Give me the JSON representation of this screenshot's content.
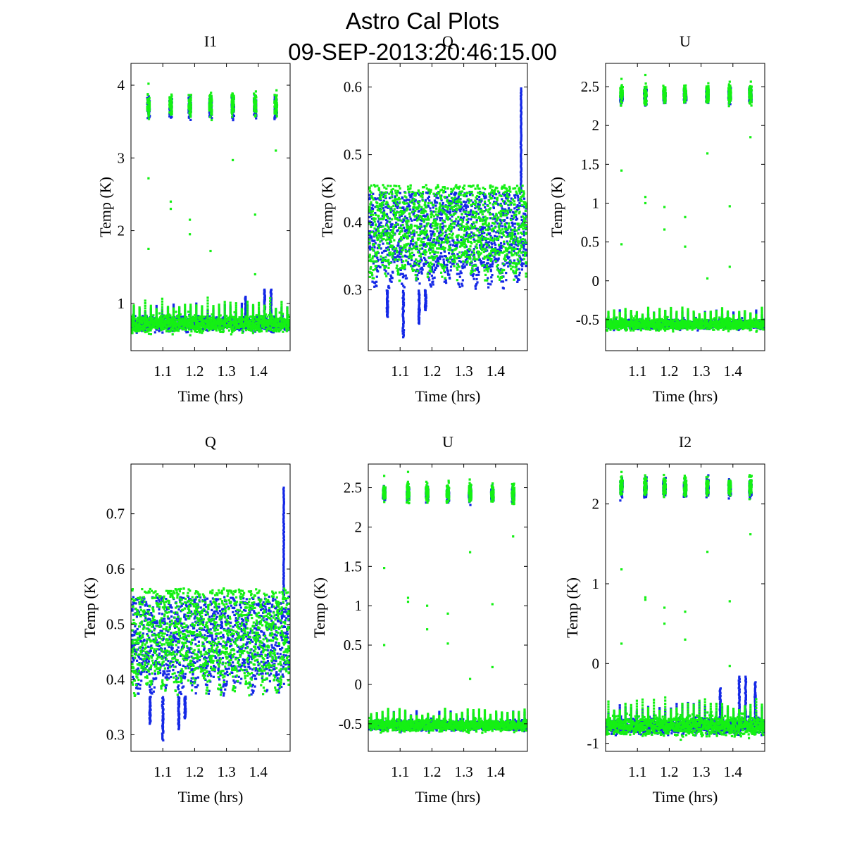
{
  "figure": {
    "title": "Astro Cal Plots",
    "subtitle": "09-SEP-2013:20:46:15.00"
  },
  "colors": {
    "series_a": "#1428e6",
    "series_b": "#14f014",
    "axes": "#000000"
  },
  "chart_data": [
    {
      "type": "scatter",
      "title": "I1",
      "xlabel": "Time (hrs)",
      "ylabel": "Temp (K)",
      "xlim": [
        1.0,
        1.5
      ],
      "ylim": [
        0.35,
        4.3
      ],
      "xticks": [
        1.1,
        1.2,
        1.3,
        1.4
      ],
      "xtick_labels": [
        "1.1",
        "1.2",
        "1.3",
        "1.4"
      ],
      "yticks": [
        1,
        2,
        3,
        4
      ],
      "ytick_labels": [
        "1",
        "2",
        "3",
        "4"
      ],
      "series": [
        {
          "name": "blue",
          "baseline": 0.72,
          "spread": 0.08,
          "cal_level": 3.7,
          "cal_spread": 0.12,
          "cal_times": [
            1.055,
            1.125,
            1.185,
            1.25,
            1.32,
            1.39,
            1.455
          ],
          "cal_width": 0.008,
          "spikes": [
            {
              "x": 1.42,
              "y": 1.2
            },
            {
              "x": 1.44,
              "y": 1.2
            },
            {
              "x": 1.36,
              "y": 1.1
            }
          ]
        },
        {
          "name": "green",
          "baseline": 0.72,
          "spread": 0.1,
          "cal_level": 3.73,
          "cal_spread": 0.12,
          "cal_times": [
            1.055,
            1.125,
            1.185,
            1.25,
            1.32,
            1.39,
            1.455
          ],
          "cal_width": 0.008,
          "outliers": [
            {
              "x": 1.055,
              "y": 4.02
            },
            {
              "x": 1.055,
              "y": 2.72
            },
            {
              "x": 1.055,
              "y": 1.75
            },
            {
              "x": 1.125,
              "y": 2.4
            },
            {
              "x": 1.125,
              "y": 2.3
            },
            {
              "x": 1.185,
              "y": 2.15
            },
            {
              "x": 1.185,
              "y": 1.95
            },
            {
              "x": 1.25,
              "y": 1.72
            },
            {
              "x": 1.32,
              "y": 2.97
            },
            {
              "x": 1.39,
              "y": 2.22
            },
            {
              "x": 1.39,
              "y": 1.4
            },
            {
              "x": 1.455,
              "y": 3.1
            }
          ]
        }
      ]
    },
    {
      "type": "scatter",
      "title": "Q",
      "xlabel": "Time (hrs)",
      "ylabel": "Temp (K)",
      "xlim": [
        1.0,
        1.5
      ],
      "ylim": [
        0.21,
        0.635
      ],
      "xticks": [
        1.1,
        1.2,
        1.3,
        1.4
      ],
      "xtick_labels": [
        "1.1",
        "1.2",
        "1.3",
        "1.4"
      ],
      "yticks": [
        0.3,
        0.4,
        0.5,
        0.6
      ],
      "ytick_labels": [
        "0.3",
        "0.4",
        "0.5",
        "0.6"
      ],
      "series": [
        {
          "name": "blue",
          "band": [
            0.3,
            0.445
          ],
          "dips": [
            {
              "x": 1.11,
              "y": 0.23
            },
            {
              "x": 1.06,
              "y": 0.26
            },
            {
              "x": 1.16,
              "y": 0.25
            },
            {
              "x": 1.18,
              "y": 0.27
            }
          ],
          "spikes": [
            {
              "x": 1.48,
              "y": 0.6
            }
          ]
        },
        {
          "name": "green",
          "band": [
            0.31,
            0.455
          ],
          "dips": [],
          "spikes": []
        }
      ]
    },
    {
      "type": "scatter",
      "title": "U",
      "xlabel": "Time (hrs)",
      "ylabel": "Temp (K)",
      "xlim": [
        1.0,
        1.5
      ],
      "ylim": [
        -0.9,
        2.8
      ],
      "xticks": [
        1.1,
        1.2,
        1.3,
        1.4
      ],
      "xtick_labels": [
        "1.1",
        "1.2",
        "1.3",
        "1.4"
      ],
      "yticks": [
        -0.5,
        0,
        0.5,
        1,
        1.5,
        2,
        2.5
      ],
      "ytick_labels": [
        "-0.5",
        "0",
        "0.5",
        "1",
        "1.5",
        "2",
        "2.5"
      ],
      "series": [
        {
          "name": "blue",
          "baseline": -0.56,
          "spread": 0.05,
          "cal_level": 2.38,
          "cal_spread": 0.08,
          "cal_times": [
            1.05,
            1.125,
            1.185,
            1.25,
            1.32,
            1.39,
            1.455
          ],
          "cal_width": 0.008
        },
        {
          "name": "green",
          "baseline": -0.56,
          "spread": 0.06,
          "cal_level": 2.4,
          "cal_spread": 0.1,
          "cal_times": [
            1.05,
            1.125,
            1.185,
            1.25,
            1.32,
            1.39,
            1.455
          ],
          "cal_width": 0.008,
          "outliers": [
            {
              "x": 1.05,
              "y": 2.6
            },
            {
              "x": 1.05,
              "y": 1.42
            },
            {
              "x": 1.05,
              "y": 0.47
            },
            {
              "x": 1.125,
              "y": 2.65
            },
            {
              "x": 1.125,
              "y": 1.08
            },
            {
              "x": 1.125,
              "y": 1.0
            },
            {
              "x": 1.185,
              "y": 0.95
            },
            {
              "x": 1.185,
              "y": 0.66
            },
            {
              "x": 1.25,
              "y": 0.82
            },
            {
              "x": 1.25,
              "y": 0.44
            },
            {
              "x": 1.32,
              "y": 1.64
            },
            {
              "x": 1.32,
              "y": 0.03
            },
            {
              "x": 1.39,
              "y": 0.96
            },
            {
              "x": 1.39,
              "y": 0.18
            },
            {
              "x": 1.455,
              "y": 1.85
            }
          ]
        }
      ]
    },
    {
      "type": "scatter",
      "title": "Q",
      "xlabel": "Time (hrs)",
      "ylabel": "Temp (K)",
      "xlim": [
        1.0,
        1.5
      ],
      "ylim": [
        0.27,
        0.79
      ],
      "xticks": [
        1.1,
        1.2,
        1.3,
        1.4
      ],
      "xtick_labels": [
        "1.1",
        "1.2",
        "1.3",
        "1.4"
      ],
      "yticks": [
        0.3,
        0.4,
        0.5,
        0.6,
        0.7
      ],
      "ytick_labels": [
        "0.3",
        "0.4",
        "0.5",
        "0.6",
        "0.7"
      ],
      "series": [
        {
          "name": "blue",
          "band": [
            0.37,
            0.55
          ],
          "dips": [
            {
              "x": 1.1,
              "y": 0.29
            },
            {
              "x": 1.06,
              "y": 0.32
            },
            {
              "x": 1.15,
              "y": 0.31
            },
            {
              "x": 1.17,
              "y": 0.33
            }
          ],
          "spikes": [
            {
              "x": 1.48,
              "y": 0.75
            }
          ]
        },
        {
          "name": "green",
          "band": [
            0.37,
            0.565
          ],
          "dips": [],
          "spikes": []
        }
      ]
    },
    {
      "type": "scatter",
      "title": "U",
      "xlabel": "Time (hrs)",
      "ylabel": "Temp (K)",
      "xlim": [
        1.0,
        1.5
      ],
      "ylim": [
        -0.85,
        2.8
      ],
      "xticks": [
        1.1,
        1.2,
        1.3,
        1.4
      ],
      "xtick_labels": [
        "1.1",
        "1.2",
        "1.3",
        "1.4"
      ],
      "yticks": [
        -0.5,
        0,
        0.5,
        1,
        1.5,
        2,
        2.5
      ],
      "ytick_labels": [
        "-0.5",
        "0",
        "0.5",
        "1",
        "1.5",
        "2",
        "2.5"
      ],
      "series": [
        {
          "name": "blue",
          "baseline": -0.52,
          "spread": 0.05,
          "cal_level": 2.42,
          "cal_spread": 0.08,
          "cal_times": [
            1.05,
            1.125,
            1.185,
            1.25,
            1.32,
            1.39,
            1.455
          ],
          "cal_width": 0.008
        },
        {
          "name": "green",
          "baseline": -0.52,
          "spread": 0.06,
          "cal_level": 2.43,
          "cal_spread": 0.1,
          "cal_times": [
            1.05,
            1.125,
            1.185,
            1.25,
            1.32,
            1.39,
            1.455
          ],
          "cal_width": 0.008,
          "outliers": [
            {
              "x": 1.05,
              "y": 2.65
            },
            {
              "x": 1.05,
              "y": 1.48
            },
            {
              "x": 1.05,
              "y": 0.5
            },
            {
              "x": 1.125,
              "y": 2.7
            },
            {
              "x": 1.125,
              "y": 1.1
            },
            {
              "x": 1.125,
              "y": 1.05
            },
            {
              "x": 1.185,
              "y": 1.0
            },
            {
              "x": 1.185,
              "y": 0.7
            },
            {
              "x": 1.25,
              "y": 0.9
            },
            {
              "x": 1.25,
              "y": 0.52
            },
            {
              "x": 1.32,
              "y": 1.68
            },
            {
              "x": 1.32,
              "y": 0.07
            },
            {
              "x": 1.39,
              "y": 1.02
            },
            {
              "x": 1.39,
              "y": 0.22
            },
            {
              "x": 1.455,
              "y": 1.88
            }
          ]
        }
      ]
    },
    {
      "type": "scatter",
      "title": "I2",
      "xlabel": "Time (hrs)",
      "ylabel": "Temp (K)",
      "xlim": [
        1.0,
        1.5
      ],
      "ylim": [
        -1.1,
        2.5
      ],
      "xticks": [
        1.1,
        1.2,
        1.3,
        1.4
      ],
      "xtick_labels": [
        "1.1",
        "1.2",
        "1.3",
        "1.4"
      ],
      "yticks": [
        -1,
        0,
        1,
        2
      ],
      "ytick_labels": [
        "-1",
        "0",
        "1",
        "2"
      ],
      "series": [
        {
          "name": "blue",
          "baseline": -0.78,
          "spread": 0.08,
          "cal_level": 2.2,
          "cal_spread": 0.1,
          "cal_times": [
            1.05,
            1.125,
            1.185,
            1.25,
            1.32,
            1.39,
            1.455
          ],
          "cal_width": 0.008,
          "spikes": [
            {
              "x": 1.42,
              "y": -0.15
            },
            {
              "x": 1.44,
              "y": -0.15
            },
            {
              "x": 1.36,
              "y": -0.3
            },
            {
              "x": 1.47,
              "y": -0.22
            }
          ]
        },
        {
          "name": "green",
          "baseline": -0.78,
          "spread": 0.1,
          "cal_level": 2.22,
          "cal_spread": 0.1,
          "cal_times": [
            1.05,
            1.125,
            1.185,
            1.25,
            1.32,
            1.39,
            1.455
          ],
          "cal_width": 0.008,
          "outliers": [
            {
              "x": 1.05,
              "y": 2.4
            },
            {
              "x": 1.05,
              "y": 1.18
            },
            {
              "x": 1.05,
              "y": 0.25
            },
            {
              "x": 1.125,
              "y": 0.83
            },
            {
              "x": 1.125,
              "y": 0.8
            },
            {
              "x": 1.185,
              "y": 0.7
            },
            {
              "x": 1.185,
              "y": 0.5
            },
            {
              "x": 1.25,
              "y": 0.65
            },
            {
              "x": 1.25,
              "y": 0.3
            },
            {
              "x": 1.32,
              "y": 1.4
            },
            {
              "x": 1.39,
              "y": 0.78
            },
            {
              "x": 1.39,
              "y": -0.03
            },
            {
              "x": 1.455,
              "y": 1.62
            }
          ]
        }
      ]
    }
  ]
}
